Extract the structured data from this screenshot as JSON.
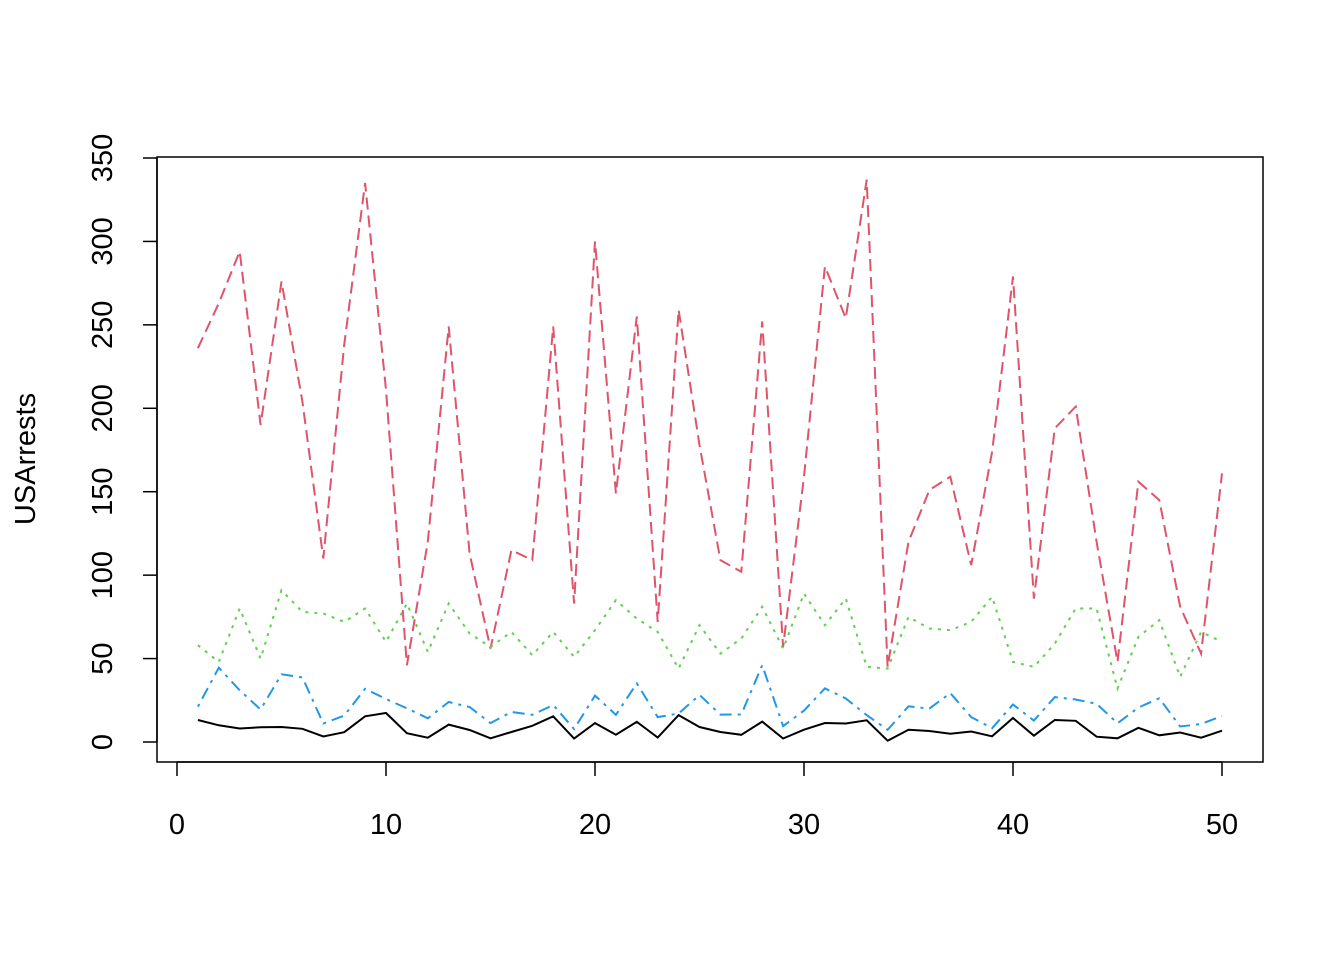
{
  "chart_data": {
    "type": "line",
    "title": "",
    "xlabel": "",
    "ylabel": "USArrests",
    "xlim": [
      0,
      50
    ],
    "ylim": [
      0,
      350
    ],
    "x_ticks": [
      "0",
      "10",
      "20",
      "30",
      "40",
      "50"
    ],
    "y_ticks": [
      "0",
      "50",
      "100",
      "150",
      "200",
      "250",
      "300",
      "350"
    ],
    "grid": false,
    "legend": "none",
    "x": [
      1,
      2,
      3,
      4,
      5,
      6,
      7,
      8,
      9,
      10,
      11,
      12,
      13,
      14,
      15,
      16,
      17,
      18,
      19,
      20,
      21,
      22,
      23,
      24,
      25,
      26,
      27,
      28,
      29,
      30,
      31,
      32,
      33,
      34,
      35,
      36,
      37,
      38,
      39,
      40,
      41,
      42,
      43,
      44,
      45,
      46,
      47,
      48,
      49,
      50
    ],
    "series": [
      {
        "color": "#000000",
        "dash": "solid",
        "values": [
          13.2,
          10.0,
          8.1,
          8.8,
          9.0,
          7.9,
          3.3,
          5.9,
          15.4,
          17.4,
          5.3,
          2.6,
          10.4,
          7.2,
          2.2,
          6.0,
          9.7,
          15.4,
          2.1,
          11.3,
          4.4,
          12.1,
          2.7,
          16.1,
          9.0,
          6.0,
          4.3,
          12.2,
          2.1,
          7.4,
          11.4,
          11.1,
          13.0,
          0.8,
          7.3,
          6.6,
          4.9,
          6.3,
          3.4,
          14.4,
          3.8,
          13.2,
          12.7,
          3.2,
          2.2,
          8.5,
          4.0,
          5.7,
          2.6,
          6.8
        ]
      },
      {
        "color": "#DF536B",
        "dash": "dashed",
        "values": [
          236,
          263,
          294,
          190,
          276,
          204,
          110,
          238,
          335,
          211,
          46,
          120,
          249,
          113,
          56,
          115,
          109,
          249,
          83,
          300,
          149,
          255,
          72,
          259,
          178,
          109,
          102,
          252,
          57,
          159,
          285,
          254,
          337,
          45,
          120,
          151,
          159,
          106,
          174,
          279,
          86,
          188,
          201,
          120,
          48,
          156,
          145,
          81,
          53,
          161
        ]
      },
      {
        "color": "#61D04F",
        "dash": "dotted",
        "values": [
          58,
          48,
          80,
          50,
          91,
          78,
          77,
          72,
          80,
          60,
          83,
          54,
          83,
          65,
          57,
          66,
          52,
          66,
          51,
          67,
          85,
          74,
          66,
          44,
          70,
          53,
          62,
          81,
          56,
          89,
          70,
          86,
          45,
          44,
          75,
          68,
          67,
          72,
          87,
          48,
          45,
          59,
          80,
          80,
          32,
          63,
          73,
          39,
          66,
          60
        ]
      },
      {
        "color": "#2297E6",
        "dash": "dotdash",
        "values": [
          21.2,
          44.5,
          31.0,
          19.5,
          40.6,
          38.7,
          11.1,
          15.8,
          31.9,
          25.8,
          20.2,
          14.2,
          24.0,
          21.0,
          11.3,
          18.0,
          16.3,
          22.2,
          7.8,
          27.8,
          16.3,
          35.1,
          14.9,
          17.1,
          28.2,
          16.4,
          16.5,
          46.0,
          9.5,
          18.8,
          32.1,
          26.1,
          16.1,
          7.3,
          21.4,
          20.0,
          29.3,
          14.9,
          8.3,
          22.5,
          12.8,
          26.9,
          25.5,
          22.9,
          11.2,
          20.7,
          26.2,
          9.3,
          10.8,
          15.6
        ]
      }
    ]
  }
}
